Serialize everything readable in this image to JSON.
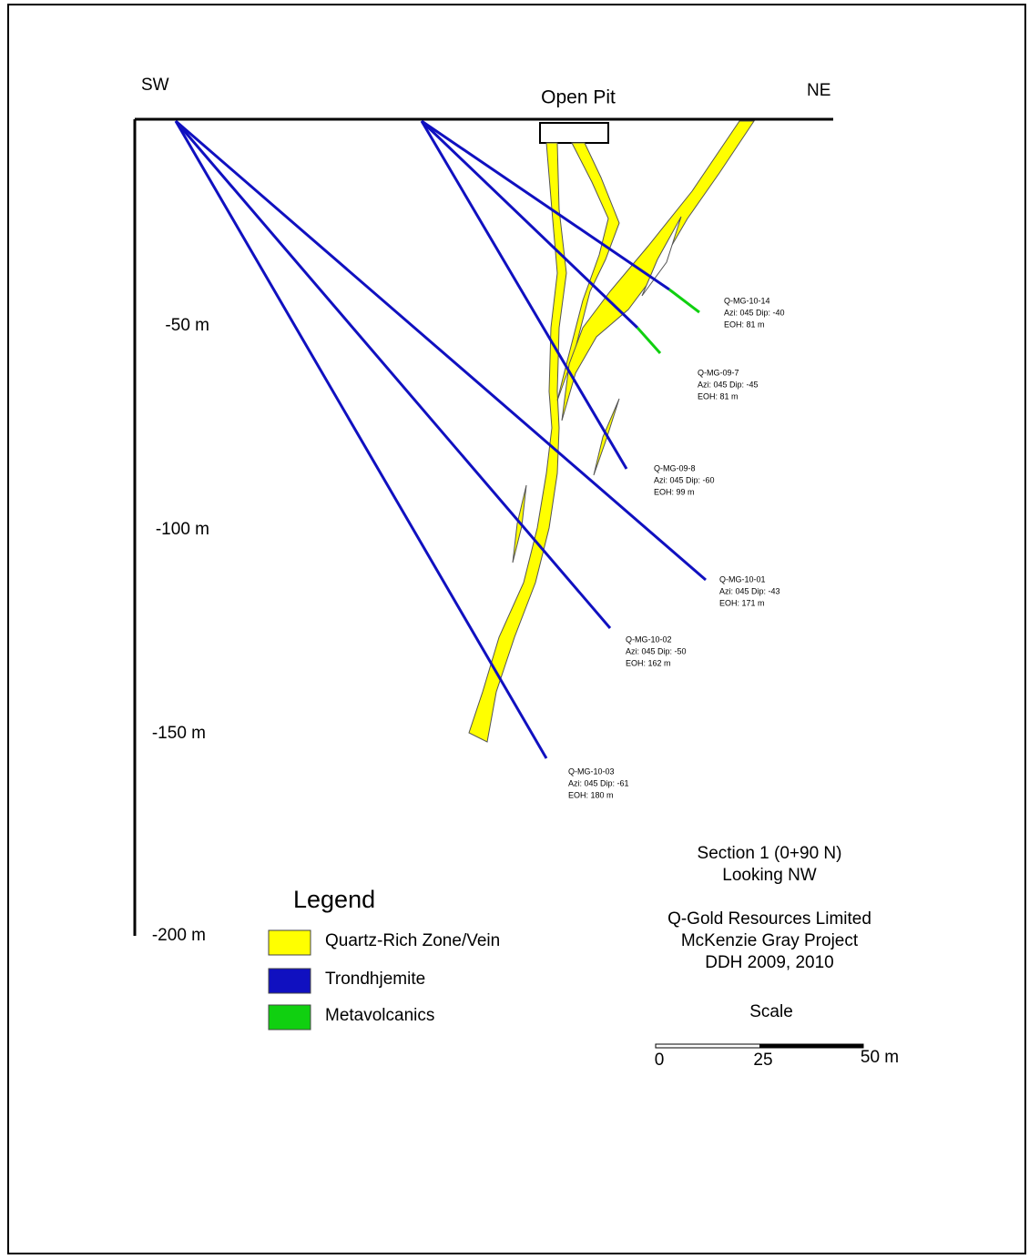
{
  "header": {
    "left": "SW",
    "right": "NE",
    "pit": "Open Pit"
  },
  "depth_labels": [
    "-50 m",
    "-100 m",
    "-150 m",
    "-200 m"
  ],
  "drill_holes": [
    {
      "name": "Q-MG-10-14",
      "orientation": "Azi: 045   Dip: -40",
      "eoh": "EOH: 81 m"
    },
    {
      "name": "Q-MG-09-7",
      "orientation": "Azi: 045   Dip: -45",
      "eoh": "EOH: 81 m"
    },
    {
      "name": "Q-MG-09-8",
      "orientation": "Azi: 045   Dip: -60",
      "eoh": "EOH: 99 m"
    },
    {
      "name": "Q-MG-10-01",
      "orientation": "Azi: 045   Dip: -43",
      "eoh": "EOH: 171 m"
    },
    {
      "name": "Q-MG-10-02",
      "orientation": "Azi: 045   Dip: -50",
      "eoh": "EOH: 162 m"
    },
    {
      "name": "Q-MG-10-03",
      "orientation": "Azi: 045   Dip: -61",
      "eoh": "EOH: 180 m"
    }
  ],
  "title_block": {
    "section": "Section 1 (0+90 N)",
    "view": "Looking NW",
    "company": "Q-Gold Resources Limited",
    "project": "McKenzie Gray Project",
    "program": "DDH 2009, 2010"
  },
  "scale": {
    "title": "Scale",
    "labels": [
      "0",
      "25",
      "50 m"
    ]
  },
  "legend": {
    "title": "Legend",
    "items": [
      "Quartz-Rich Zone/Vein",
      "Trondhjemite",
      "Metavolcanics"
    ]
  }
}
